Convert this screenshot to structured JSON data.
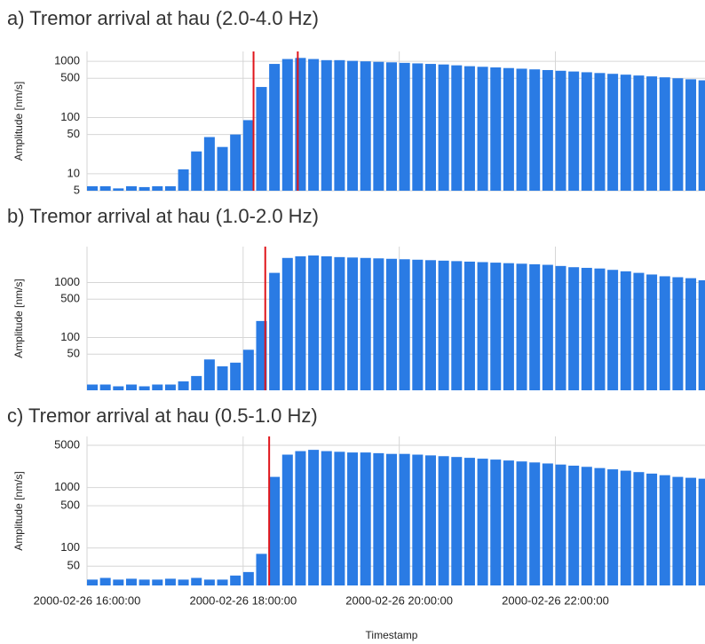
{
  "chart_data": [
    {
      "type": "bar",
      "title": "a) Tremor arrival at hau (2.0-4.0 Hz)",
      "y_label": "Amplitude [nm/s]",
      "log_scale": true,
      "grid": true,
      "color": "#2a7be4",
      "show_xtick_labels": false,
      "x": [
        "2000-02-26 16:00:00",
        "2000-02-26 16:10:00",
        "2000-02-26 16:20:00",
        "2000-02-26 16:30:00",
        "2000-02-26 16:40:00",
        "2000-02-26 16:50:00",
        "2000-02-26 17:00:00",
        "2000-02-26 17:10:00",
        "2000-02-26 17:20:00",
        "2000-02-26 17:30:00",
        "2000-02-26 17:40:00",
        "2000-02-26 17:50:00",
        "2000-02-26 18:00:00",
        "2000-02-26 18:10:00",
        "2000-02-26 18:20:00",
        "2000-02-26 18:30:00",
        "2000-02-26 18:40:00",
        "2000-02-26 18:50:00",
        "2000-02-26 19:00:00",
        "2000-02-26 19:10:00",
        "2000-02-26 19:20:00",
        "2000-02-26 19:30:00",
        "2000-02-26 19:40:00",
        "2000-02-26 19:50:00",
        "2000-02-26 20:00:00",
        "2000-02-26 20:10:00",
        "2000-02-26 20:20:00",
        "2000-02-26 20:30:00",
        "2000-02-26 20:40:00",
        "2000-02-26 20:50:00",
        "2000-02-26 21:00:00",
        "2000-02-26 21:10:00",
        "2000-02-26 21:20:00",
        "2000-02-26 21:30:00",
        "2000-02-26 21:40:00",
        "2000-02-26 21:50:00",
        "2000-02-26 22:00:00",
        "2000-02-26 22:10:00",
        "2000-02-26 22:20:00",
        "2000-02-26 22:30:00",
        "2000-02-26 22:40:00",
        "2000-02-26 22:50:00",
        "2000-02-26 23:00:00",
        "2000-02-26 23:10:00",
        "2000-02-26 23:20:00",
        "2000-02-26 23:30:00",
        "2000-02-26 23:40:00",
        "2000-02-26 23:50:00"
      ],
      "values": [
        6,
        6,
        5.5,
        6,
        5.8,
        6,
        6,
        12,
        25,
        45,
        30,
        50,
        90,
        350,
        900,
        1100,
        1150,
        1100,
        1050,
        1050,
        1020,
        1000,
        980,
        960,
        940,
        920,
        900,
        880,
        850,
        820,
        800,
        780,
        760,
        740,
        720,
        700,
        680,
        660,
        640,
        620,
        600,
        580,
        560,
        540,
        520,
        500,
        480,
        460
      ],
      "xlim": [
        "2000-02-26 16:00:00",
        "2000-02-26 23:55:00"
      ],
      "xticks": [
        "2000-02-26 16:00:00",
        "2000-02-26 18:00:00",
        "2000-02-26 20:00:00",
        "2000-02-26 22:00:00"
      ],
      "ylim": [
        5,
        1500
      ],
      "yticks": [
        5,
        10,
        50,
        100,
        500,
        1000
      ],
      "markers": {
        "color": "#e0151b",
        "x": [
          "2000-02-26 18:08:00",
          "2000-02-26 18:42:00"
        ]
      }
    },
    {
      "type": "bar",
      "title": "b) Tremor arrival at hau (1.0-2.0 Hz)",
      "y_label": "Amplitude [nm/s]",
      "log_scale": true,
      "grid": true,
      "color": "#2a7be4",
      "show_xtick_labels": false,
      "x": [
        "2000-02-26 16:00:00",
        "2000-02-26 16:10:00",
        "2000-02-26 16:20:00",
        "2000-02-26 16:30:00",
        "2000-02-26 16:40:00",
        "2000-02-26 16:50:00",
        "2000-02-26 17:00:00",
        "2000-02-26 17:10:00",
        "2000-02-26 17:20:00",
        "2000-02-26 17:30:00",
        "2000-02-26 17:40:00",
        "2000-02-26 17:50:00",
        "2000-02-26 18:00:00",
        "2000-02-26 18:10:00",
        "2000-02-26 18:20:00",
        "2000-02-26 18:30:00",
        "2000-02-26 18:40:00",
        "2000-02-26 18:50:00",
        "2000-02-26 19:00:00",
        "2000-02-26 19:10:00",
        "2000-02-26 19:20:00",
        "2000-02-26 19:30:00",
        "2000-02-26 19:40:00",
        "2000-02-26 19:50:00",
        "2000-02-26 20:00:00",
        "2000-02-26 20:10:00",
        "2000-02-26 20:20:00",
        "2000-02-26 20:30:00",
        "2000-02-26 20:40:00",
        "2000-02-26 20:50:00",
        "2000-02-26 21:00:00",
        "2000-02-26 21:10:00",
        "2000-02-26 21:20:00",
        "2000-02-26 21:30:00",
        "2000-02-26 21:40:00",
        "2000-02-26 21:50:00",
        "2000-02-26 22:00:00",
        "2000-02-26 22:10:00",
        "2000-02-26 22:20:00",
        "2000-02-26 22:30:00",
        "2000-02-26 22:40:00",
        "2000-02-26 22:50:00",
        "2000-02-26 23:00:00",
        "2000-02-26 23:10:00",
        "2000-02-26 23:20:00",
        "2000-02-26 23:30:00",
        "2000-02-26 23:40:00",
        "2000-02-26 23:50:00"
      ],
      "values": [
        14,
        14,
        13,
        14,
        13,
        14,
        14,
        16,
        20,
        40,
        30,
        35,
        60,
        200,
        1500,
        2800,
        3000,
        3100,
        3000,
        2900,
        2850,
        2800,
        2750,
        2700,
        2650,
        2600,
        2550,
        2500,
        2450,
        2400,
        2350,
        2300,
        2250,
        2200,
        2150,
        2100,
        2000,
        1900,
        1850,
        1800,
        1700,
        1600,
        1500,
        1400,
        1300,
        1250,
        1200,
        1100
      ],
      "xlim": [
        "2000-02-26 16:00:00",
        "2000-02-26 23:55:00"
      ],
      "xticks": [
        "2000-02-26 16:00:00",
        "2000-02-26 18:00:00",
        "2000-02-26 20:00:00",
        "2000-02-26 22:00:00"
      ],
      "ylim": [
        11,
        4500
      ],
      "yticks": [
        50,
        100,
        500,
        1000
      ],
      "markers": {
        "color": "#e0151b",
        "x": [
          "2000-02-26 18:17:00"
        ]
      }
    },
    {
      "type": "bar",
      "title": "c) Tremor arrival at hau (0.5-1.0 Hz)",
      "y_label": "Amplitude [nm/s]",
      "x_label": "Timestamp",
      "log_scale": true,
      "grid": true,
      "color": "#2a7be4",
      "show_xtick_labels": true,
      "x": [
        "2000-02-26 16:00:00",
        "2000-02-26 16:10:00",
        "2000-02-26 16:20:00",
        "2000-02-26 16:30:00",
        "2000-02-26 16:40:00",
        "2000-02-26 16:50:00",
        "2000-02-26 17:00:00",
        "2000-02-26 17:10:00",
        "2000-02-26 17:20:00",
        "2000-02-26 17:30:00",
        "2000-02-26 17:40:00",
        "2000-02-26 17:50:00",
        "2000-02-26 18:00:00",
        "2000-02-26 18:10:00",
        "2000-02-26 18:20:00",
        "2000-02-26 18:30:00",
        "2000-02-26 18:40:00",
        "2000-02-26 18:50:00",
        "2000-02-26 19:00:00",
        "2000-02-26 19:10:00",
        "2000-02-26 19:20:00",
        "2000-02-26 19:30:00",
        "2000-02-26 19:40:00",
        "2000-02-26 19:50:00",
        "2000-02-26 20:00:00",
        "2000-02-26 20:10:00",
        "2000-02-26 20:20:00",
        "2000-02-26 20:30:00",
        "2000-02-26 20:40:00",
        "2000-02-26 20:50:00",
        "2000-02-26 21:00:00",
        "2000-02-26 21:10:00",
        "2000-02-26 21:20:00",
        "2000-02-26 21:30:00",
        "2000-02-26 21:40:00",
        "2000-02-26 21:50:00",
        "2000-02-26 22:00:00",
        "2000-02-26 22:10:00",
        "2000-02-26 22:20:00",
        "2000-02-26 22:30:00",
        "2000-02-26 22:40:00",
        "2000-02-26 22:50:00",
        "2000-02-26 23:00:00",
        "2000-02-26 23:10:00",
        "2000-02-26 23:20:00",
        "2000-02-26 23:30:00",
        "2000-02-26 23:40:00",
        "2000-02-26 23:50:00"
      ],
      "values": [
        30,
        32,
        30,
        31,
        30,
        30,
        31,
        30,
        32,
        30,
        30,
        35,
        40,
        80,
        1500,
        3500,
        4000,
        4200,
        4000,
        3900,
        3800,
        3800,
        3700,
        3600,
        3600,
        3500,
        3400,
        3300,
        3200,
        3100,
        3000,
        2900,
        2800,
        2700,
        2600,
        2500,
        2400,
        2300,
        2200,
        2100,
        2000,
        1900,
        1800,
        1700,
        1600,
        1500,
        1450,
        1400
      ],
      "xlim": [
        "2000-02-26 16:00:00",
        "2000-02-26 23:55:00"
      ],
      "xticks": [
        "2000-02-26 16:00:00",
        "2000-02-26 18:00:00",
        "2000-02-26 20:00:00",
        "2000-02-26 22:00:00"
      ],
      "ylim": [
        24,
        7000
      ],
      "yticks": [
        50,
        100,
        500,
        1000,
        5000
      ],
      "markers": {
        "color": "#e0151b",
        "x": [
          "2000-02-26 18:20:00"
        ]
      }
    }
  ]
}
